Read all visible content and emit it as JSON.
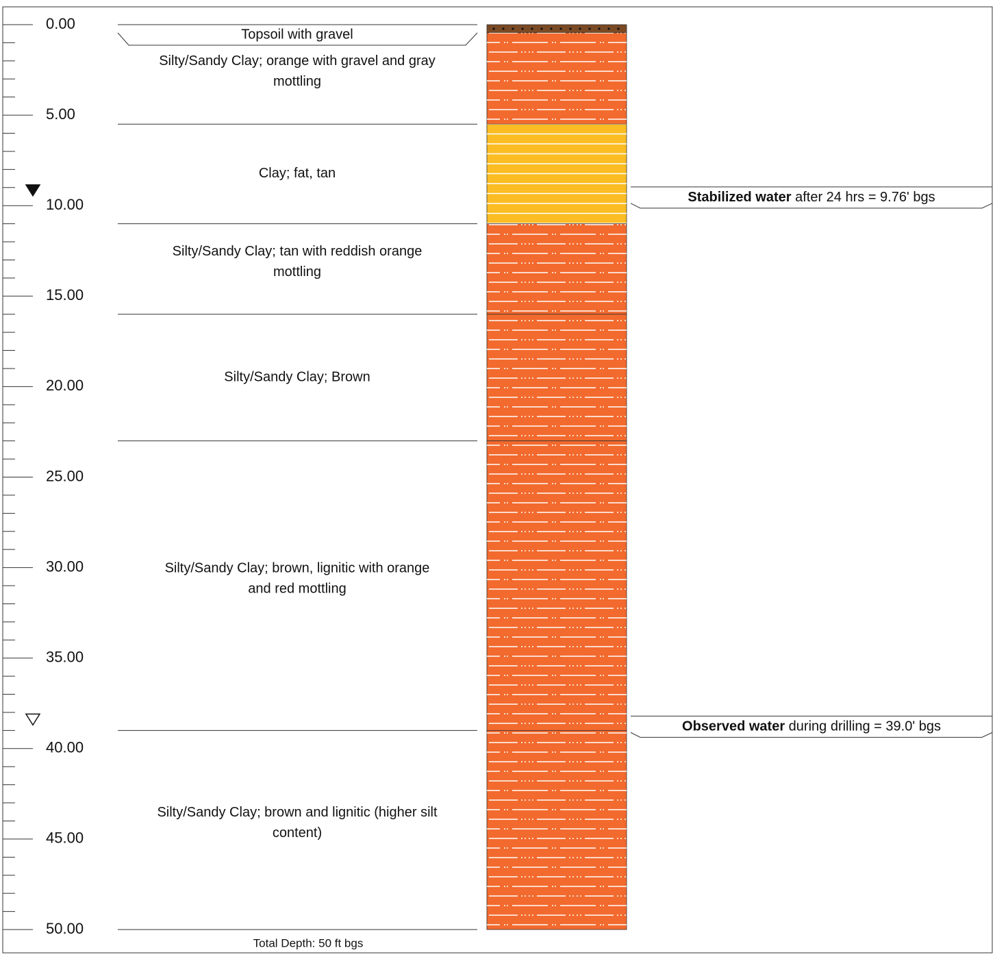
{
  "depth_axis": {
    "lim": [
      0,
      50
    ],
    "ticks": [
      {
        "value": 0,
        "label": "0.00"
      },
      {
        "value": 5,
        "label": "5.00"
      },
      {
        "value": 10,
        "label": "10.00"
      },
      {
        "value": 15,
        "label": "15.00"
      },
      {
        "value": 20,
        "label": "20.00"
      },
      {
        "value": 25,
        "label": "25.00"
      },
      {
        "value": 30,
        "label": "30.00"
      },
      {
        "value": 35,
        "label": "35.00"
      },
      {
        "value": 40,
        "label": "40.00"
      },
      {
        "value": 45,
        "label": "45.00"
      },
      {
        "value": 50,
        "label": "50.00"
      }
    ]
  },
  "layers": [
    {
      "top": 0,
      "bottom": 0.45,
      "lines": [
        "Topsoil with gravel"
      ],
      "color": "#7a4a25",
      "pattern": "dotted"
    },
    {
      "top": 0.45,
      "bottom": 5.5,
      "lines": [
        "Silty/Sandy Clay; orange with gravel and gray",
        "mottling"
      ],
      "color": "#f26a2e",
      "pattern": "dash-dot"
    },
    {
      "top": 5.5,
      "bottom": 11,
      "lines": [
        "Clay; fat, tan"
      ],
      "color": "#fbbd23",
      "pattern": "lined"
    },
    {
      "top": 11,
      "bottom": 16,
      "lines": [
        "Silty/Sandy Clay; tan with reddish orange",
        "mottling"
      ],
      "color": "#f26a2e",
      "pattern": "dash-dot"
    },
    {
      "top": 16,
      "bottom": 23,
      "lines": [
        "Silty/Sandy Clay; Brown"
      ],
      "color": "#f26a2e",
      "pattern": "dash-dot"
    },
    {
      "top": 23,
      "bottom": 39,
      "lines": [
        "Silty/Sandy Clay; brown, lignitic with orange",
        "and red mottling"
      ],
      "color": "#f26a2e",
      "pattern": "dash-dot"
    },
    {
      "top": 39,
      "bottom": 50,
      "lines": [
        "Silty/Sandy Clay; brown and lignitic (higher silt",
        "content)"
      ],
      "color": "#f26a2e",
      "pattern": "dash-dot"
    }
  ],
  "water": [
    {
      "depth": 9.76,
      "bold": "Stabilized water",
      "text": "after 24 hrs = 9.76' bgs",
      "marker": "filled"
    },
    {
      "depth": 39.0,
      "bold": "Observed water",
      "text": "during drilling = 39.0' bgs",
      "marker": "hollow"
    }
  ],
  "footer": "Total Depth: 50 ft bgs"
}
